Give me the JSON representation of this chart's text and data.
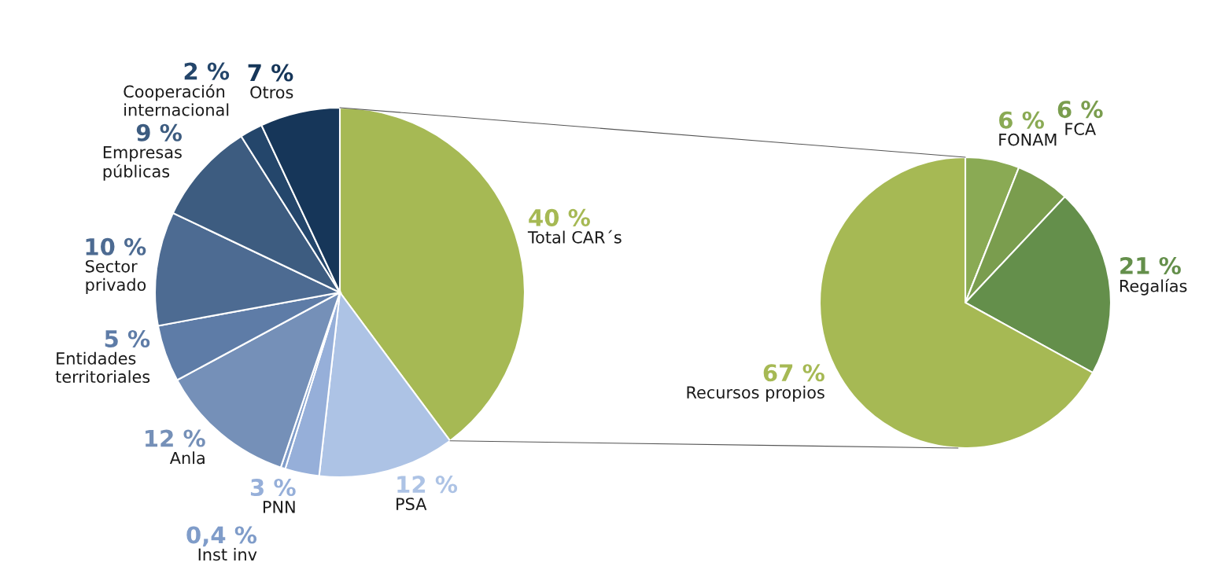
{
  "chart_data": [
    {
      "type": "pie",
      "categories": [
        "Total CAR´s",
        "PSA",
        "PNN",
        "Inst inv",
        "Anla",
        "Entidades territoriales",
        "Sector privado",
        "Empresas públicas",
        "Cooperación internacional",
        "Otros"
      ],
      "values": [
        40,
        12,
        3,
        0.4,
        12,
        5,
        10,
        9,
        2,
        7
      ],
      "value_labels": [
        "40 %",
        "12 %",
        "3 %",
        "0,4 %",
        "12 %",
        "5 %",
        "10 %",
        "9 %",
        "2 %",
        "7 %"
      ],
      "colors": [
        "#a6b954",
        "#adc3e5",
        "#96afd9",
        "#7f9cc9",
        "#7590b8",
        "#5e7ca7",
        "#4d6b92",
        "#3d5c80",
        "#24466b",
        "#163659"
      ]
    },
    {
      "type": "pie",
      "categories": [
        "FONAM",
        "FCA",
        "Regalías",
        "Recursos propios"
      ],
      "values": [
        6,
        6,
        21,
        67
      ],
      "value_labels": [
        "6 %",
        "6 %",
        "21 %",
        "67 %"
      ],
      "colors": [
        "#8aaa54",
        "#7a9d4e",
        "#648f4b",
        "#a6b954"
      ]
    }
  ]
}
